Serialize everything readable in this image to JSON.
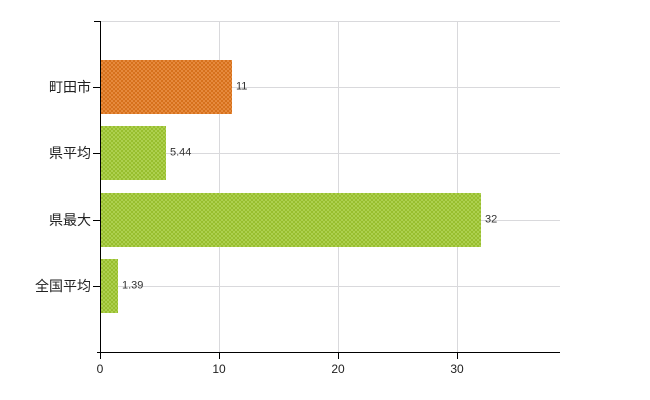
{
  "chart_data": {
    "type": "bar",
    "orientation": "horizontal",
    "categories": [
      "町田市",
      "県平均",
      "県最大",
      "全国平均"
    ],
    "values": [
      11,
      5.44,
      32,
      1.39
    ],
    "value_labels": [
      "11",
      "5.44",
      "32",
      "1.39"
    ],
    "bar_colors": [
      "#e2771d",
      "#a0c832",
      "#a0c832",
      "#a0c832"
    ],
    "x_ticks": [
      0,
      10,
      20,
      30
    ],
    "x_tick_labels": [
      "0",
      "10",
      "20",
      "30"
    ],
    "xlim": [
      0,
      38.7
    ],
    "grid": true,
    "legend": false,
    "colors": {
      "background": "#ffffff",
      "grid": "#d9d9dc",
      "axis": "#000000",
      "label_text": "#222222",
      "value_text": "#333333"
    }
  }
}
